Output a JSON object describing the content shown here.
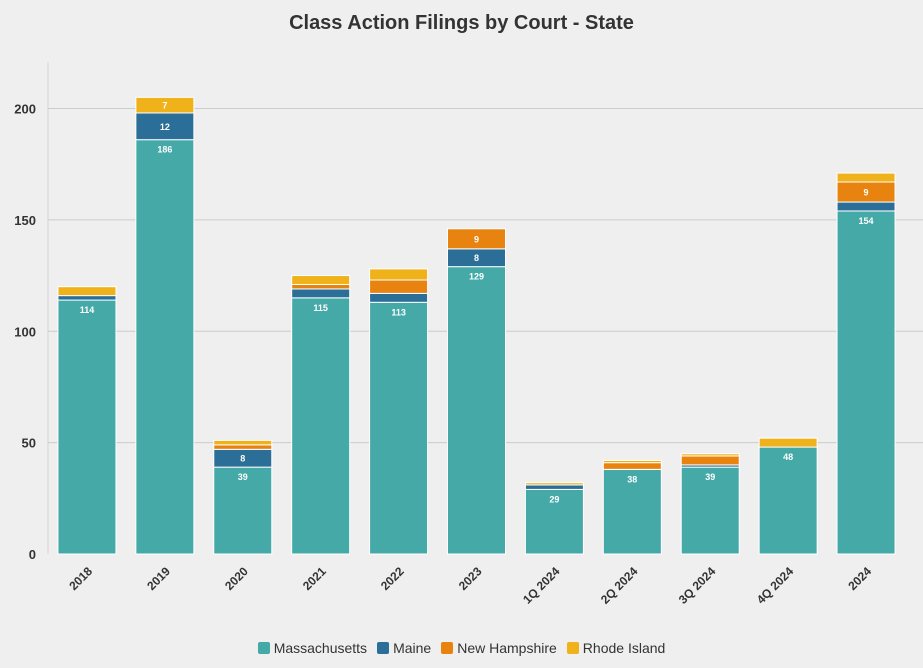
{
  "chart_data": {
    "type": "bar",
    "stacked": true,
    "title": "Class Action Filings by Court - State",
    "xlabel": "",
    "ylabel": "",
    "ylim": [
      0,
      220
    ],
    "yticks": [
      "0",
      "50",
      "100",
      "150",
      "200"
    ],
    "grid": true,
    "legend_position": "bottom-center",
    "categories": [
      "2018",
      "2019",
      "2020",
      "2021",
      "2022",
      "2023",
      "1Q 2024",
      "2Q 2024",
      "3Q 2024",
      "4Q 2024",
      "2024"
    ],
    "series": [
      {
        "name": "Massachusetts",
        "color": "#45a9a8",
        "values": [
          114,
          186,
          39,
          115,
          113,
          129,
          29,
          38,
          39,
          48,
          154
        ]
      },
      {
        "name": "Maine",
        "color": "#2b6e98",
        "values": [
          2,
          12,
          8,
          4,
          4,
          8,
          2,
          0,
          1,
          0,
          4
        ]
      },
      {
        "name": "New Hampshire",
        "color": "#e8830f",
        "values": [
          0,
          0,
          2,
          2,
          6,
          9,
          0,
          3,
          4,
          0,
          9
        ]
      },
      {
        "name": "Rhode Island",
        "color": "#f0b21a",
        "values": [
          4,
          7,
          2,
          4,
          5,
          0,
          1,
          1,
          1,
          4,
          4
        ]
      }
    ],
    "data_labels": [
      {
        "category": 0,
        "series": 0,
        "text": "114"
      },
      {
        "category": 1,
        "series": 0,
        "text": "186"
      },
      {
        "category": 1,
        "series": 1,
        "text": "12"
      },
      {
        "category": 1,
        "series": 3,
        "text": "7"
      },
      {
        "category": 2,
        "series": 0,
        "text": "39"
      },
      {
        "category": 2,
        "series": 1,
        "text": "8"
      },
      {
        "category": 3,
        "series": 0,
        "text": "115"
      },
      {
        "category": 4,
        "series": 0,
        "text": "113"
      },
      {
        "category": 5,
        "series": 0,
        "text": "129"
      },
      {
        "category": 5,
        "series": 1,
        "text": "8"
      },
      {
        "category": 5,
        "series": 2,
        "text": "9"
      },
      {
        "category": 6,
        "series": 0,
        "text": "29"
      },
      {
        "category": 7,
        "series": 0,
        "text": "38"
      },
      {
        "category": 8,
        "series": 0,
        "text": "39"
      },
      {
        "category": 9,
        "series": 0,
        "text": "48"
      },
      {
        "category": 10,
        "series": 0,
        "text": "154"
      },
      {
        "category": 10,
        "series": 2,
        "text": "9"
      }
    ]
  }
}
